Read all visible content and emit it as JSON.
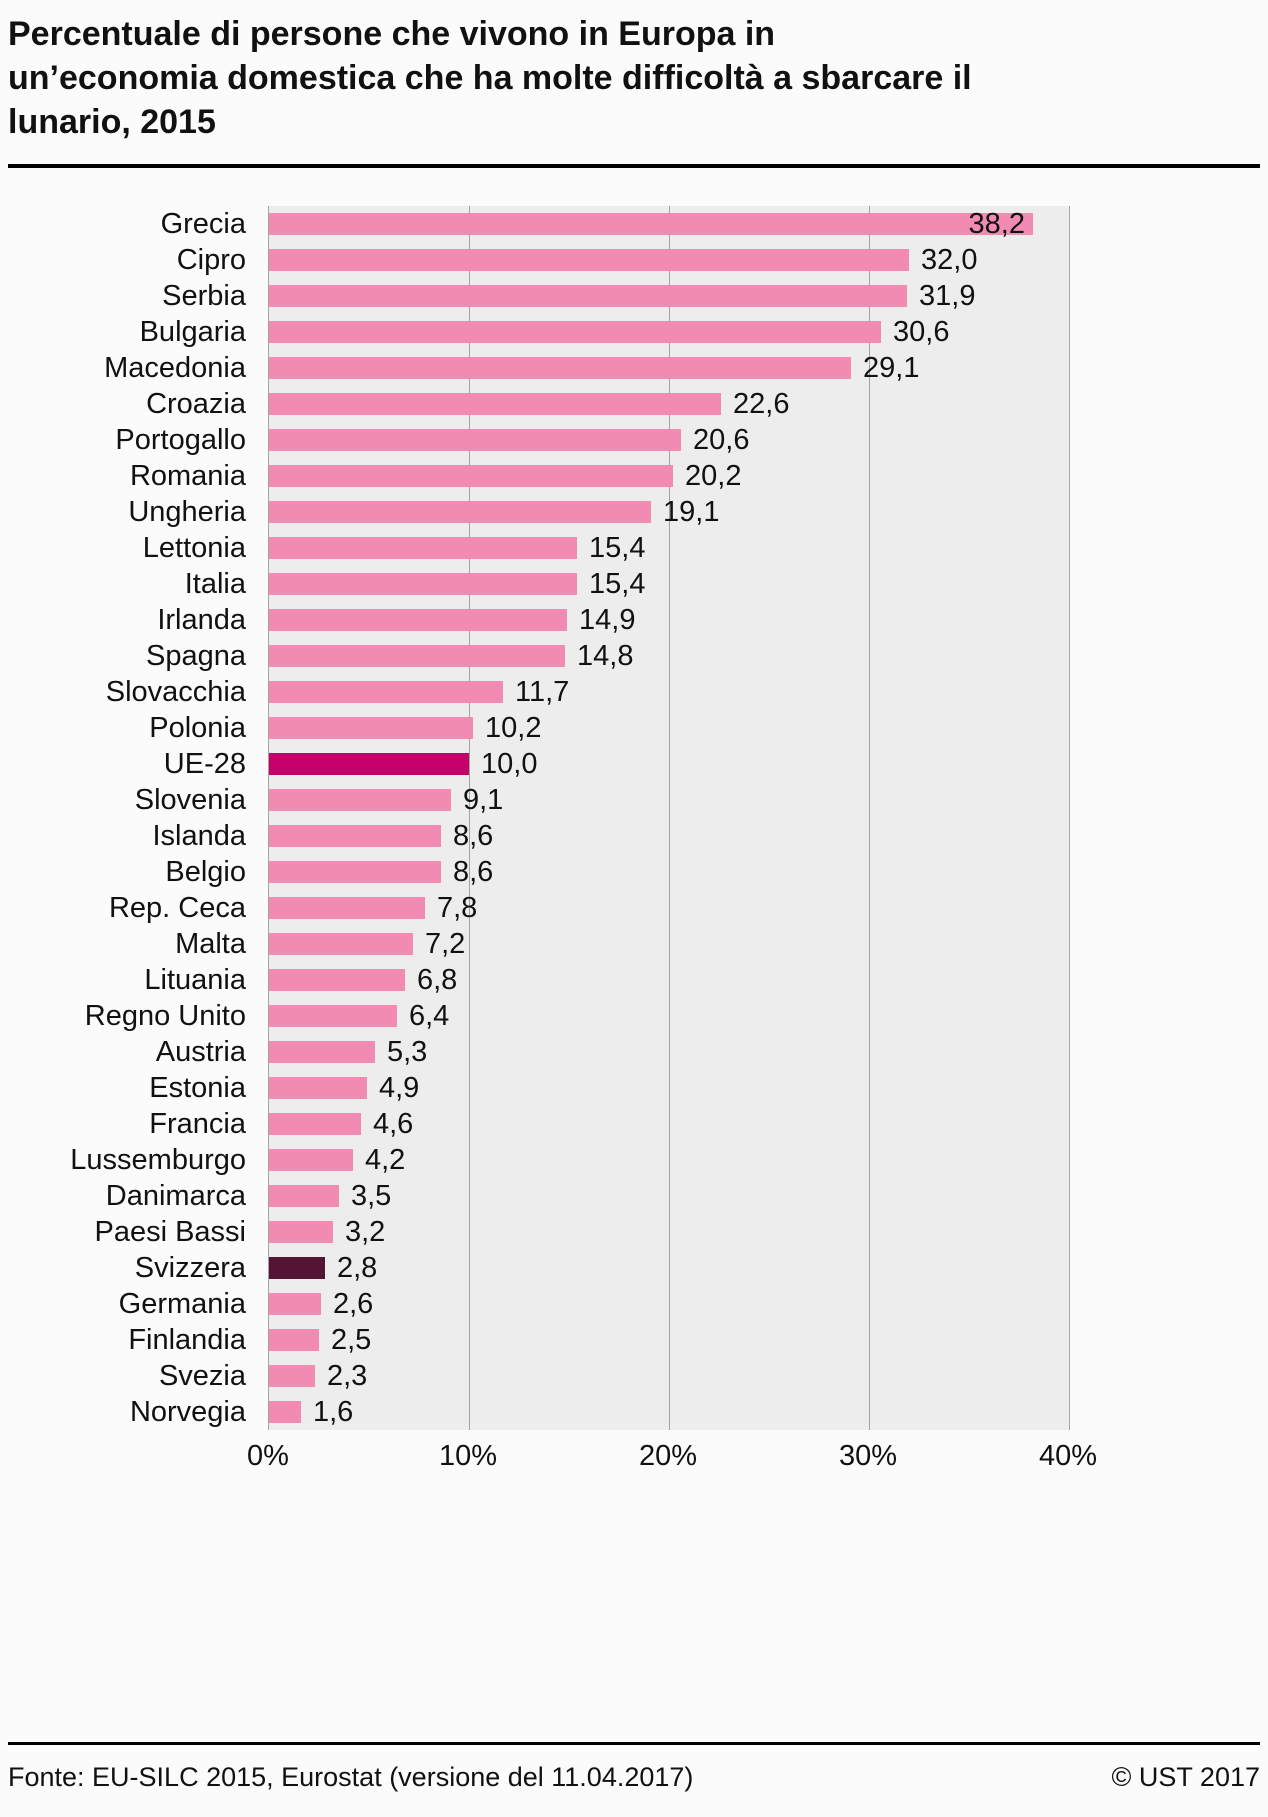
{
  "page": {
    "title": "Percentuale di persone che vivono in Europa in un’economia domestica che ha molte difficoltà a sbarcare il lunario, 2015",
    "footer_source": "Fonte: EU-SILC 2015, Eurostat (versione del 11.04.2017)",
    "footer_copyright": "© UST 2017"
  },
  "colors": {
    "bar": "#f18bb2",
    "bar_eu28": "#c60069",
    "bar_switzerland": "#551433",
    "plot_bg": "#ededed",
    "grid": "#a3a3a3",
    "text": "#111111"
  },
  "chart_data": {
    "type": "bar",
    "orientation": "horizontal",
    "title": "Percentuale di persone che vivono in Europa in un’economia domestica che ha molte difficoltà a sbarcare il lunario, 2015",
    "xlabel": "",
    "ylabel": "",
    "xlim": [
      0,
      40
    ],
    "grid": "vertical gridlines at each 10%",
    "legend": "none",
    "xticks": [
      {
        "value": 0,
        "label": "0%"
      },
      {
        "value": 10,
        "label": "10%"
      },
      {
        "value": 20,
        "label": "20%"
      },
      {
        "value": 30,
        "label": "30%"
      },
      {
        "value": 40,
        "label": "40%"
      }
    ],
    "categories": [
      "Grecia",
      "Cipro",
      "Serbia",
      "Bulgaria",
      "Macedonia",
      "Croazia",
      "Portogallo",
      "Romania",
      "Ungheria",
      "Lettonia",
      "Italia",
      "Irlanda",
      "Spagna",
      "Slovacchia",
      "Polonia",
      "UE-28",
      "Slovenia",
      "Islanda",
      "Belgio",
      "Rep. Ceca",
      "Malta",
      "Lituania",
      "Regno Unito",
      "Austria",
      "Estonia",
      "Francia",
      "Lussemburgo",
      "Danimarca",
      "Paesi Bassi",
      "Svizzera",
      "Germania",
      "Finlandia",
      "Svezia",
      "Norvegia"
    ],
    "values": [
      38.2,
      32.0,
      31.9,
      30.6,
      29.1,
      22.6,
      20.6,
      20.2,
      19.1,
      15.4,
      15.4,
      14.9,
      14.8,
      11.7,
      10.2,
      10.0,
      9.1,
      8.6,
      8.6,
      7.8,
      7.2,
      6.8,
      6.4,
      5.3,
      4.9,
      4.6,
      4.2,
      3.5,
      3.2,
      2.8,
      2.6,
      2.5,
      2.3,
      1.6
    ],
    "value_labels": [
      "38,2",
      "32,0",
      "31,9",
      "30,6",
      "29,1",
      "22,6",
      "20,6",
      "20,2",
      "19,1",
      "15,4",
      "15,4",
      "14,9",
      "14,8",
      "11,7",
      "10,2",
      "10,0",
      "9,1",
      "8,6",
      "8,6",
      "7,8",
      "7,2",
      "6,8",
      "6,4",
      "5,3",
      "4,9",
      "4,6",
      "4,2",
      "3,5",
      "3,2",
      "2,8",
      "2,6",
      "2,5",
      "2,3",
      "1,6"
    ],
    "highlighted": {
      "UE-28": "bar_eu28",
      "Svizzera": "bar_switzerland"
    }
  }
}
